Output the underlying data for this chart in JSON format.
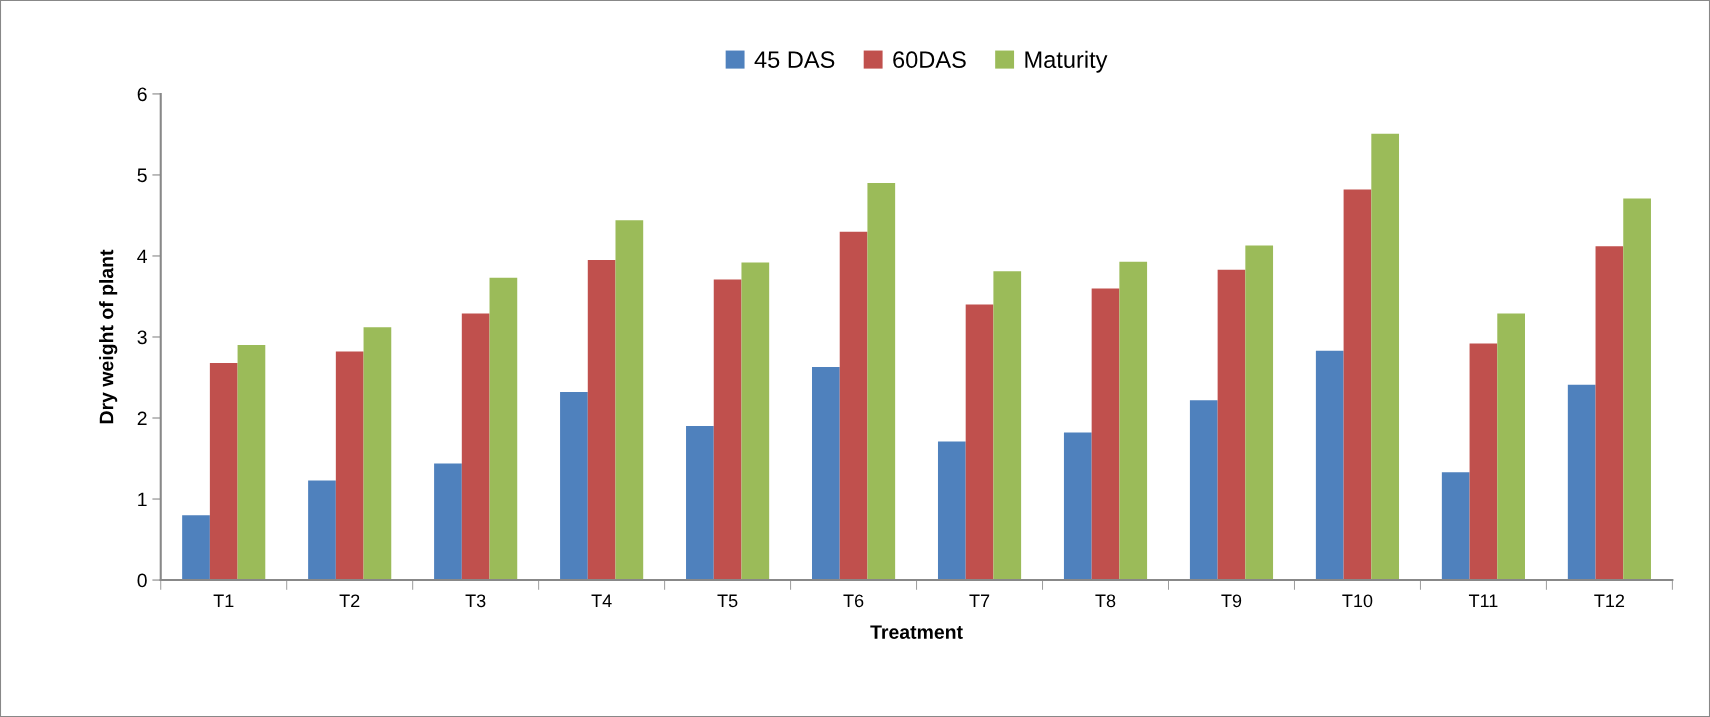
{
  "chart_data": {
    "type": "bar",
    "xlabel": "Treatment",
    "ylabel": "Dry weight of plant",
    "categories": [
      "T1",
      "T2",
      "T3",
      "T4",
      "T5",
      "T6",
      "T7",
      "T8",
      "T9",
      "T10",
      "T11",
      "T12"
    ],
    "series": [
      {
        "name": "45 DAS",
        "color": "#4f81bd",
        "values": [
          0.8,
          1.23,
          1.44,
          2.32,
          1.9,
          2.63,
          1.71,
          1.82,
          2.22,
          2.83,
          1.33,
          2.41
        ]
      },
      {
        "name": "60DAS",
        "color": "#c0504d",
        "values": [
          2.68,
          2.82,
          3.29,
          3.95,
          3.71,
          4.3,
          3.4,
          3.6,
          3.83,
          4.82,
          2.92,
          4.12
        ]
      },
      {
        "name": "Maturity",
        "color": "#9bbb59",
        "values": [
          2.9,
          3.12,
          3.73,
          4.44,
          3.92,
          4.9,
          3.81,
          3.93,
          4.13,
          5.51,
          3.29,
          4.71
        ]
      }
    ],
    "ylim": [
      0,
      6
    ],
    "yticks": [
      0,
      1,
      2,
      3,
      4,
      5,
      6
    ],
    "grid": false,
    "legend": "top"
  }
}
